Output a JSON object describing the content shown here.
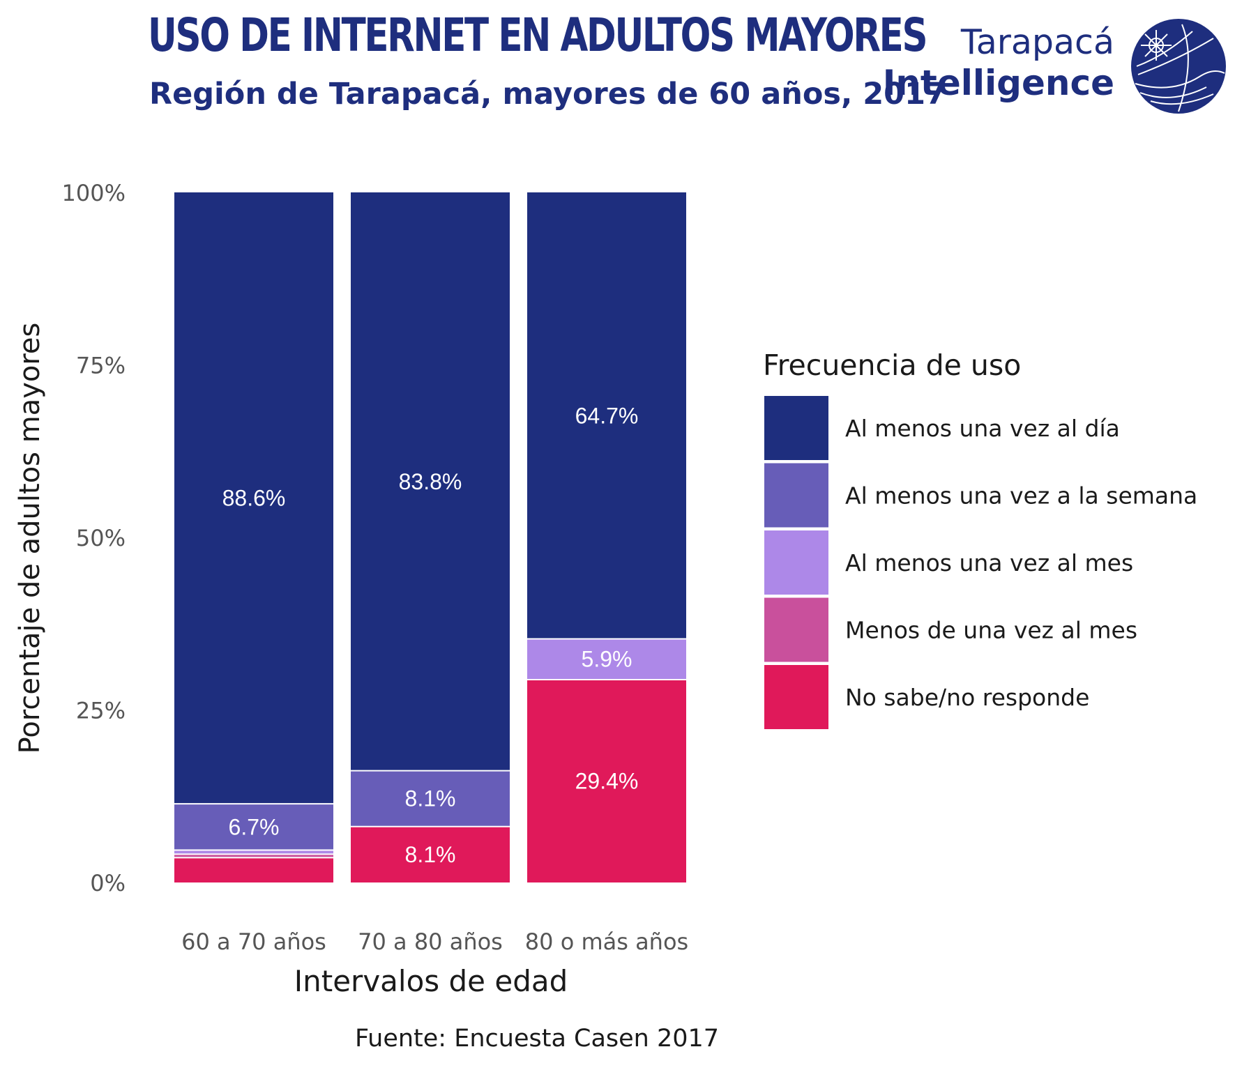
{
  "title": "USO DE INTERNET EN ADULTOS MAYORES",
  "subtitle": "Región de Tarapacá, mayores de 60 años, 2017",
  "logo": {
    "line1": "Tarapacá",
    "line2": "Intelligence",
    "icon": "compass-globe-icon"
  },
  "source": "Fuente: Encuesta Casen 2017",
  "chart_data": {
    "type": "bar",
    "stacked": true,
    "categories": [
      "60 a 70 años",
      "70 a 80 años",
      "80 o más años"
    ],
    "xlabel": "Intervalos de edad",
    "ylabel": "Porcentaje de adultos mayores",
    "ylim": [
      0,
      100
    ],
    "yticks": [
      {
        "value": 0,
        "label": "0%"
      },
      {
        "value": 25,
        "label": "25%"
      },
      {
        "value": 50,
        "label": "50%"
      },
      {
        "value": 75,
        "label": "75%"
      },
      {
        "value": 100,
        "label": "100%"
      }
    ],
    "grid": false,
    "legend_title": "Frecuencia de uso",
    "legend_position": "right",
    "series": [
      {
        "name": "No sabe/no responde",
        "color": "#e0195a",
        "values": [
          3.6,
          8.1,
          29.4
        ],
        "labels": [
          "",
          "8.1%",
          "29.4%"
        ]
      },
      {
        "name": "Menos de una vez al mes",
        "color": "#c9509c",
        "values": [
          0.5,
          0,
          0
        ],
        "labels": [
          "",
          "",
          ""
        ]
      },
      {
        "name": "Al menos una vez al mes",
        "color": "#ad88e8",
        "values": [
          0.6,
          0,
          5.9
        ],
        "labels": [
          "",
          "",
          "5.9%"
        ]
      },
      {
        "name": "Al menos una vez a la semana",
        "color": "#675db8",
        "values": [
          6.7,
          8.1,
          0
        ],
        "labels": [
          "6.7%",
          "8.1%",
          ""
        ]
      },
      {
        "name": "Al menos una vez al día",
        "color": "#1e2e7e",
        "values": [
          88.6,
          83.8,
          64.7
        ],
        "labels": [
          "88.6%",
          "83.8%",
          "64.7%"
        ]
      }
    ]
  }
}
